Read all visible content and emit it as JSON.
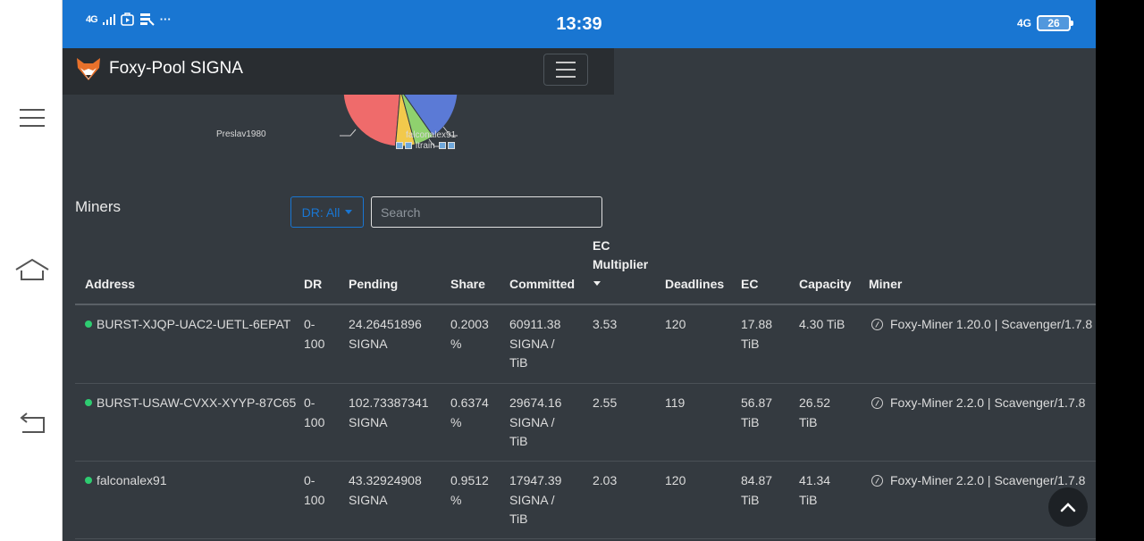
{
  "status_bar": {
    "network": "4G",
    "time": "13:39",
    "network_right": "4G",
    "battery": "26",
    "more": "···"
  },
  "navbar": {
    "brand": "Foxy-Pool SIGNA",
    "logo_icon": "fox-icon",
    "toggle_icon": "hamburger-icon"
  },
  "chart_data": {
    "type": "pie",
    "labels": [
      "Preslav1980",
      "falconalex91",
      "ltrain"
    ],
    "colors": [
      "#ef6b6b",
      "#5b7ad6",
      "#8fd16e",
      "#f2c94c"
    ]
  },
  "miners": {
    "title": "Miners",
    "dr_filter": "DR: All",
    "search_placeholder": "Search"
  },
  "table": {
    "headers": {
      "address": "Address",
      "dr": "DR",
      "pending": "Pending",
      "share": "Share",
      "committed": "Committed",
      "ec_multiplier_1": "EC",
      "ec_multiplier_2": "Multiplier",
      "deadlines": "Deadlines",
      "ec": "EC",
      "capacity": "Capacity",
      "miner": "Miner"
    },
    "rows": [
      {
        "address": "BURST-XJQP-UAC2-UETL-6EPAT",
        "dr_1": "0-",
        "dr_2": "100",
        "pending_1": "24.26451896",
        "pending_2": "SIGNA",
        "share_1": "0.2003",
        "share_2": "%",
        "committed_1": "60911.38",
        "committed_2": "SIGNA /",
        "committed_3": "TiB",
        "ec_multiplier": "3.53",
        "deadlines": "120",
        "ec_1": "17.88",
        "ec_2": "TiB",
        "capacity_1": "4.30 TiB",
        "capacity_2": "",
        "miner": "Foxy-Miner 1.20.0 | Scavenger/1.7.8"
      },
      {
        "address": "BURST-USAW-CVXX-XYYP-87C65",
        "dr_1": "0-",
        "dr_2": "100",
        "pending_1": "102.73387341",
        "pending_2": "SIGNA",
        "share_1": "0.6374",
        "share_2": "%",
        "committed_1": "29674.16",
        "committed_2": "SIGNA /",
        "committed_3": "TiB",
        "ec_multiplier": "2.55",
        "deadlines": "119",
        "ec_1": "56.87",
        "ec_2": "TiB",
        "capacity_1": "26.52",
        "capacity_2": "TiB",
        "miner": "Foxy-Miner 2.2.0 | Scavenger/1.7.8"
      },
      {
        "address": "falconalex91",
        "dr_1": "0-",
        "dr_2": "100",
        "pending_1": "43.32924908",
        "pending_2": "SIGNA",
        "share_1": "0.9512",
        "share_2": "%",
        "committed_1": "17947.39",
        "committed_2": "SIGNA /",
        "committed_3": "TiB",
        "ec_multiplier": "2.03",
        "deadlines": "120",
        "ec_1": "84.87",
        "ec_2": "TiB",
        "capacity_1": "41.34",
        "capacity_2": "TiB",
        "miner": "Foxy-Miner 2.2.0 | Scavenger/1.7.8"
      }
    ]
  }
}
